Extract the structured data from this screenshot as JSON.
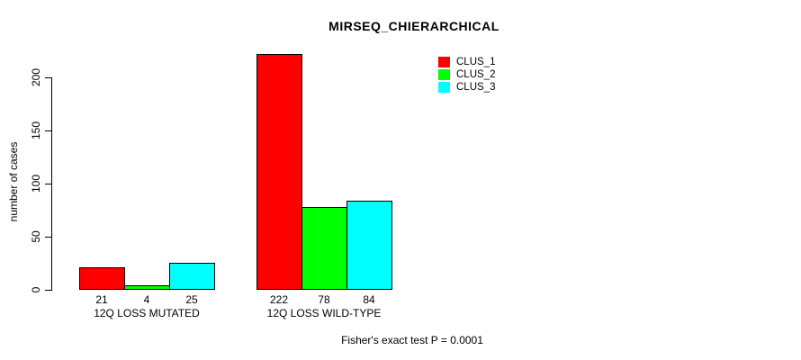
{
  "title": "MIRSEQ_CHIERARCHICAL",
  "footer": "Fisher's exact test P = 0.0001",
  "colors": {
    "clus_1": "#ff0000",
    "clus_2": "#00ff00",
    "clus_3": "#00ffff",
    "axis": "#000000",
    "background": "#ffffff"
  },
  "chart_data": {
    "type": "bar",
    "title": "MIRSEQ_CHIERARCHICAL",
    "xlabel": "",
    "ylabel": "number of cases",
    "categories": [
      "12Q LOSS MUTATED",
      "12Q LOSS WILD-TYPE"
    ],
    "series": [
      {
        "name": "CLUS_1",
        "color": "#ff0000",
        "values": [
          21,
          222
        ]
      },
      {
        "name": "CLUS_2",
        "color": "#00ff00",
        "values": [
          4,
          78
        ]
      },
      {
        "name": "CLUS_3",
        "color": "#00ffff",
        "values": [
          25,
          84
        ]
      }
    ],
    "bar_value_labels": [
      [
        "21",
        "4",
        "25"
      ],
      [
        "222",
        "78",
        "84"
      ]
    ],
    "yticks": [
      0,
      50,
      100,
      150,
      200
    ],
    "ylim": [
      0,
      222
    ],
    "grid": false,
    "legend_position": "top-right",
    "legend_entries": [
      "CLUS_1",
      "CLUS_2",
      "CLUS_3"
    ],
    "annotation": "Fisher's exact test P = 0.0001"
  }
}
